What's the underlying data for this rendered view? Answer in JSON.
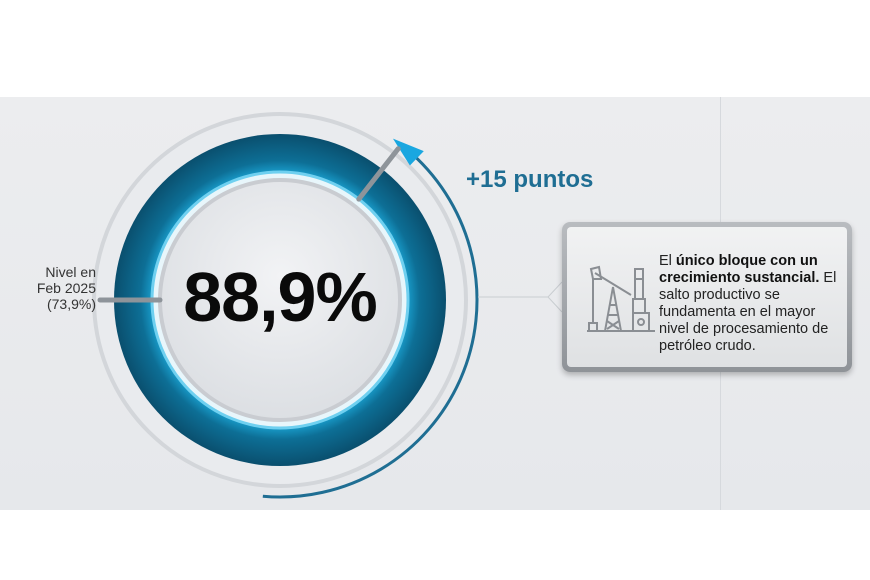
{
  "chart_data": {
    "type": "gauge",
    "value": 88.9,
    "value_label": "88,9%",
    "max": 100,
    "previous_value": 73.9,
    "previous_label": [
      "Nivel en",
      "Feb 2025",
      "(73,9%)"
    ],
    "change_label": "+15 puntos"
  },
  "callout": {
    "bold": "único bloque con un crecimiento sustancial.",
    "prefix": "El ",
    "body": "El salto productivo se fundamenta en el mayor nivel de procesamiento de petróleo crudo.",
    "icon": "oil-pumpjack-icon"
  },
  "colors": {
    "ring": "#0d6f96",
    "ring_dark": "#0a4f6e",
    "arrow": "#1f6e93",
    "arrowhead": "#1aa7e0"
  }
}
